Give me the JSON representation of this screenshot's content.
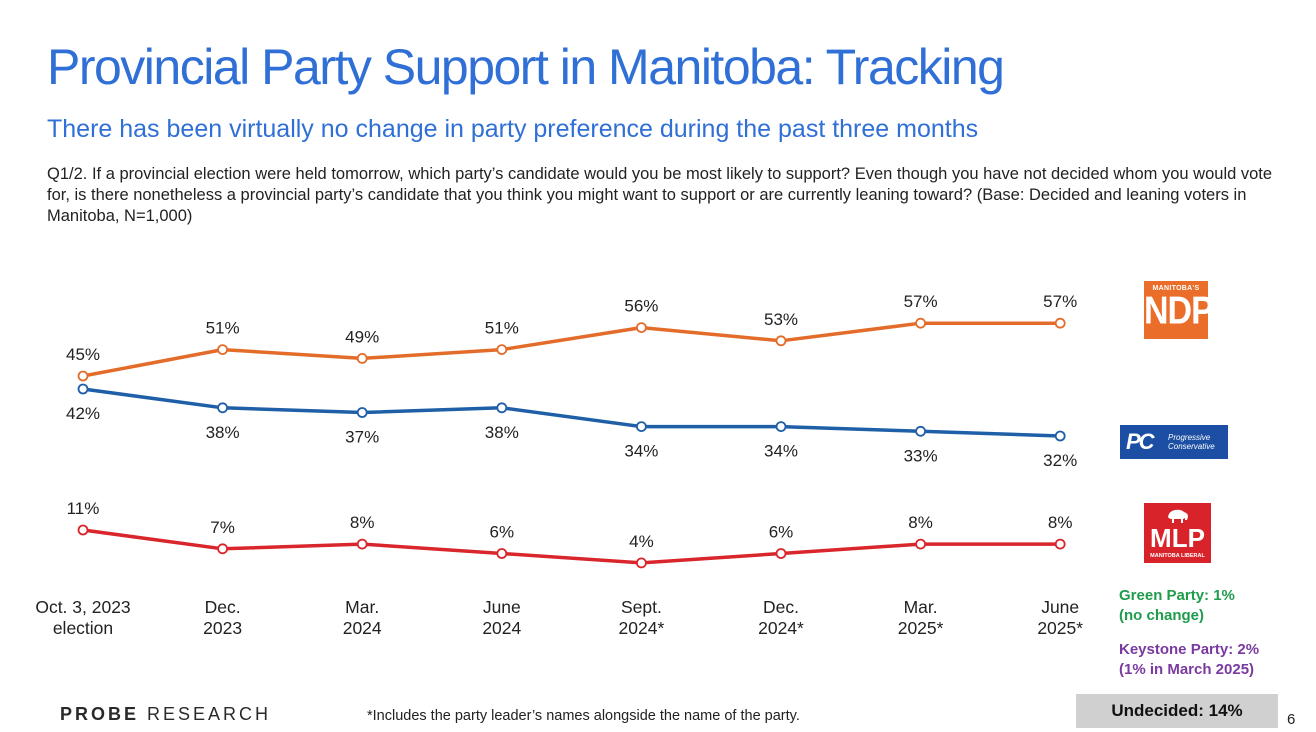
{
  "title": "Provincial Party Support in Manitoba: Tracking",
  "subtitle": "There has been virtually no change in party preference during the past three months",
  "question": "Q1/2. If a provincial election were held tomorrow, which party’s candidate would you be most likely to support? Even though you have not decided whom you would vote for, is there nonetheless a provincial party’s candidate that you think you might want to support or are currently leaning toward? (Base: Decided and leaning voters in Manitoba, N=1,000)",
  "chart_data": {
    "type": "line",
    "title": "Provincial Party Support in Manitoba: Tracking",
    "categories": [
      [
        "Oct. 3, 2023",
        "election"
      ],
      [
        "Dec.",
        "2023"
      ],
      [
        "Mar.",
        "2024"
      ],
      [
        "June",
        "2024"
      ],
      [
        "Sept.",
        "2024*"
      ],
      [
        "Dec.",
        "2024*"
      ],
      [
        "Mar.",
        "2025*"
      ],
      [
        "June",
        "2025*"
      ]
    ],
    "series": [
      {
        "name": "NDP",
        "color": "#e46c2b",
        "values": [
          45,
          51,
          49,
          51,
          56,
          53,
          57,
          57
        ],
        "labels": [
          "45%",
          "51%",
          "49%",
          "51%",
          "56%",
          "53%",
          "57%",
          "57%"
        ],
        "label_position": "above"
      },
      {
        "name": "PC",
        "color": "#1f5fa8",
        "values": [
          42,
          38,
          37,
          38,
          34,
          34,
          33,
          32
        ],
        "labels": [
          "42%",
          "38%",
          "37%",
          "38%",
          "34%",
          "34%",
          "33%",
          "32%"
        ],
        "label_position": "below"
      },
      {
        "name": "Liberal",
        "color": "#d9262c",
        "values": [
          11,
          7,
          8,
          6,
          4,
          6,
          8,
          8
        ],
        "labels": [
          "11%",
          "7%",
          "8%",
          "6%",
          "4%",
          "6%",
          "8%",
          "8%"
        ],
        "label_position": "above"
      }
    ],
    "xlabel": "",
    "ylabel": "",
    "grid": false,
    "legend": "logos at right"
  },
  "logos": {
    "ndp": {
      "small": "MANITOBA'S",
      "big": "NDP"
    },
    "pc": {
      "mark": "PC",
      "line1": "Progressive",
      "line2": "Conservative"
    },
    "mlp": {
      "big": "MLP",
      "small": "MANITOBA LIBERAL"
    }
  },
  "notes": {
    "green_line1": "Green Party: 1%",
    "green_line2": "(no change)",
    "keystone_line1": "Keystone Party: 2%",
    "keystone_line2": "(1% in March 2025)"
  },
  "undecided": "Undecided: 14%",
  "brand": {
    "bold": "PROBE",
    "rest": " RESEARCH"
  },
  "footnote": "*Includes the party leader’s names alongside the name of the party.",
  "page_number": "6",
  "colors": {
    "accent": "#2f6fd6",
    "ndp": "#e46c2b",
    "pc": "#1f5fa8",
    "liberal": "#d9262c",
    "green": "#1f9c4c",
    "keystone": "#7a3aa0"
  }
}
